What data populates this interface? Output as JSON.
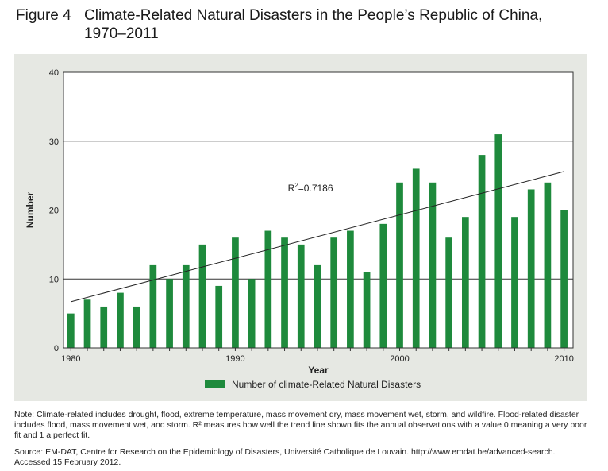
{
  "figure": {
    "number": "Figure 4",
    "title": "Climate-Related Natural Disasters in the People’s Republic of China, 1970–2011"
  },
  "chart_data": {
    "type": "bar",
    "title": "",
    "xlabel": "Year",
    "ylabel": "Number",
    "ylim": [
      0,
      40
    ],
    "yticks": [
      "0",
      "10",
      "20",
      "30",
      "40"
    ],
    "xtick_labels": [
      {
        "year": 1980,
        "label": "1980"
      },
      {
        "year": 1990,
        "label": "1990"
      },
      {
        "year": 2000,
        "label": "2000"
      },
      {
        "year": 2010,
        "label": "2010"
      }
    ],
    "grid": "horizontal",
    "bar_color": "#1e8a3c",
    "series": [
      {
        "name": "Number of climate-Related Natural Disasters",
        "x": [
          1980,
          1981,
          1982,
          1983,
          1984,
          1985,
          1986,
          1987,
          1988,
          1989,
          1990,
          1991,
          1992,
          1993,
          1994,
          1995,
          1996,
          1997,
          1998,
          1999,
          2000,
          2001,
          2002,
          2003,
          2004,
          2005,
          2006,
          2007,
          2008,
          2009,
          2010
        ],
        "values": [
          5,
          7,
          6,
          8,
          6,
          12,
          10,
          12,
          15,
          9,
          16,
          10,
          17,
          16,
          15,
          12,
          16,
          17,
          11,
          18,
          24,
          26,
          24,
          16,
          19,
          28,
          31,
          19,
          23,
          24,
          20
        ]
      }
    ],
    "trendline": {
      "x": [
        1980,
        2010
      ],
      "y": [
        6.7,
        25.6
      ],
      "r2_prefix": "R",
      "r2_superscript": "2",
      "r2_value": "=0.7186"
    },
    "legend": {
      "position": "bottom-center",
      "label": "Number of climate-Related Natural Disasters"
    }
  },
  "note": "Note: Climate-related includes drought, flood, extreme temperature, mass movement dry, mass movement wet, storm, and wildfire. Flood-related disaster includes flood, mass movement wet, and storm. R² measures how well the trend line shown fits the annual observations with a value 0 meaning a very poor fit and 1 a perfect fit.",
  "source": "Source: EM-DAT, Centre for Research on the Epidemiology of Disasters, Université Catholique de Louvain. http://www.emdat.be/advanced-search. Accessed 15 February 2012."
}
